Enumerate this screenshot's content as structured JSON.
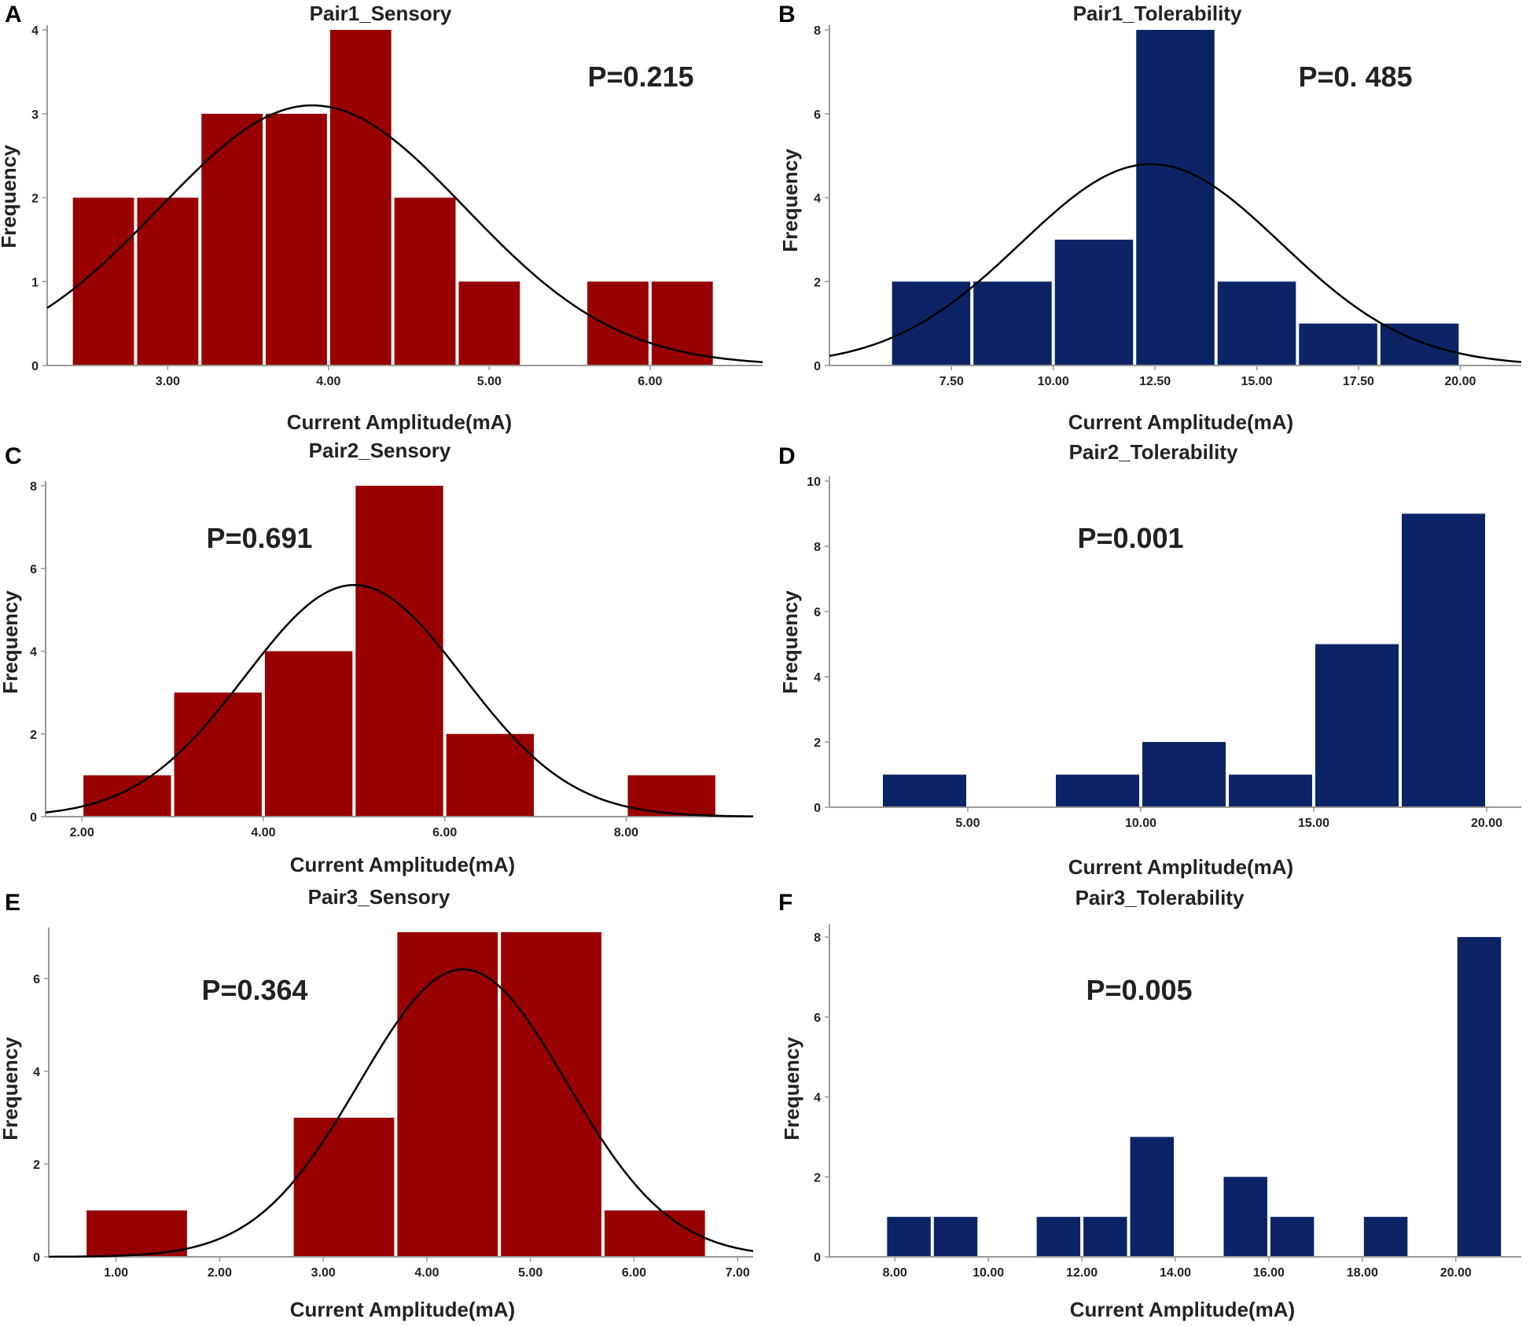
{
  "figure": {
    "panels": [
      {
        "letter": "A"
      },
      {
        "letter": "B"
      },
      {
        "letter": "C"
      },
      {
        "letter": "D"
      },
      {
        "letter": "E"
      },
      {
        "letter": "F"
      }
    ]
  },
  "colors": {
    "sensory": "#990000",
    "tolerability": "#0c2466",
    "curve": "#000000",
    "axis": "#999999"
  },
  "chart_data": [
    {
      "panel": "A",
      "type": "bar",
      "title": "Pair1_Sensory",
      "annotation": "P=0.215",
      "xlabel": "Current  Amplitude(mA)",
      "ylabel": "Frequency",
      "xlim": [
        2.25,
        6.7
      ],
      "ylim": [
        0,
        4
      ],
      "xticks": [
        3,
        4,
        5,
        6
      ],
      "xtick_labels": [
        "3.00",
        "4.00",
        "5.00",
        "6.00"
      ],
      "yticks": [
        0,
        1,
        2,
        3,
        4
      ],
      "ytick_labels": [
        "0",
        "1",
        "2",
        "3",
        "4"
      ],
      "bins": [
        [
          2.4,
          2.8
        ],
        [
          2.8,
          3.2
        ],
        [
          3.2,
          3.6
        ],
        [
          3.6,
          4.0
        ],
        [
          4.0,
          4.4
        ],
        [
          4.4,
          4.8
        ],
        [
          4.8,
          5.2
        ],
        [
          5.6,
          6.0
        ],
        [
          6.0,
          6.4
        ]
      ],
      "values": [
        2,
        2,
        3,
        3,
        4,
        2,
        1,
        1,
        1
      ],
      "normal_curve": {
        "mean": 3.9,
        "sd": 0.95,
        "peak": 3.1
      },
      "color": "sensory"
    },
    {
      "panel": "B",
      "type": "bar",
      "title": "Pair1_Tolerability",
      "annotation": "P=0. 485",
      "xlabel": "Current  Amplitude(mA)",
      "ylabel": "Frequency",
      "xlim": [
        4.5,
        21.5
      ],
      "ylim": [
        0,
        8
      ],
      "xticks": [
        7.5,
        10,
        12.5,
        15,
        17.5,
        20
      ],
      "xtick_labels": [
        "7.50",
        "10.00",
        "12.50",
        "15.00",
        "17.50",
        "20.00"
      ],
      "yticks": [
        0,
        2,
        4,
        6,
        8
      ],
      "ytick_labels": [
        "0",
        "2",
        "4",
        "6",
        "8"
      ],
      "bins": [
        [
          6,
          8
        ],
        [
          8,
          10
        ],
        [
          10,
          12
        ],
        [
          12,
          14
        ],
        [
          14,
          16
        ],
        [
          16,
          18
        ],
        [
          18,
          20
        ]
      ],
      "values": [
        2,
        2,
        3,
        8,
        2,
        1,
        1
      ],
      "normal_curve": {
        "mean": 12.4,
        "sd": 3.2,
        "peak": 4.8
      },
      "color": "tolerability"
    },
    {
      "panel": "C",
      "type": "bar",
      "title": "Pair2_Sensory",
      "annotation": "P=0.691",
      "xlabel": "Current  Amplitude(mA)",
      "ylabel": "Frequency",
      "xlim": [
        1.6,
        9.4
      ],
      "ylim": [
        0,
        8
      ],
      "xticks": [
        2,
        4,
        6,
        8
      ],
      "xtick_labels": [
        "2.00",
        "4.00",
        "6.00",
        "8.00"
      ],
      "yticks": [
        0,
        2,
        4,
        6,
        8
      ],
      "ytick_labels": [
        "0",
        "2",
        "4",
        "6",
        "8"
      ],
      "bins": [
        [
          2,
          3
        ],
        [
          3,
          4
        ],
        [
          4,
          5
        ],
        [
          5,
          6
        ],
        [
          6,
          7
        ],
        [
          8,
          9
        ]
      ],
      "values": [
        1,
        3,
        4,
        8,
        2,
        1
      ],
      "normal_curve": {
        "mean": 5.0,
        "sd": 1.2,
        "peak": 5.6
      },
      "color": "sensory"
    },
    {
      "panel": "D",
      "type": "bar",
      "title": "Pair2_Tolerability",
      "annotation": "P=0.001",
      "xlabel": "Current  Amplitude(mA)",
      "ylabel": "Frequency",
      "xlim": [
        1,
        21
      ],
      "ylim": [
        0,
        10
      ],
      "xticks": [
        5,
        10,
        15,
        20
      ],
      "xtick_labels": [
        "5.00",
        "10.00",
        "15.00",
        "20.00"
      ],
      "yticks": [
        0,
        2,
        4,
        6,
        8,
        10
      ],
      "ytick_labels": [
        "0",
        "2",
        "4",
        "6",
        "8",
        "10"
      ],
      "bins": [
        [
          2.5,
          5
        ],
        [
          7.5,
          10
        ],
        [
          10,
          12.5
        ],
        [
          12.5,
          15
        ],
        [
          15,
          17.5
        ],
        [
          17.5,
          20
        ]
      ],
      "values": [
        1,
        1,
        2,
        1,
        5,
        9
      ],
      "normal_curve": null,
      "color": "tolerability"
    },
    {
      "panel": "E",
      "type": "bar",
      "title": "Pair3_Sensory",
      "annotation": "P=0.364",
      "xlabel": "Current  Amplitude(mA)",
      "ylabel": "Frequency",
      "xlim": [
        0.35,
        7.15
      ],
      "ylim": [
        0,
        7
      ],
      "xticks": [
        1,
        2,
        3,
        4,
        5,
        6,
        7
      ],
      "xtick_labels": [
        "1.00",
        "2.00",
        "3.00",
        "4.00",
        "5.00",
        "6.00",
        "7.00"
      ],
      "yticks": [
        0,
        2,
        4,
        6
      ],
      "ytick_labels": [
        "0",
        "2",
        "4",
        "6"
      ],
      "bins": [
        [
          0.7,
          1.7
        ],
        [
          2.7,
          3.7
        ],
        [
          3.7,
          4.7
        ],
        [
          4.7,
          5.7
        ],
        [
          5.7,
          6.7
        ]
      ],
      "values": [
        1,
        3,
        7,
        7,
        1
      ],
      "normal_curve": {
        "mean": 4.35,
        "sd": 1.0,
        "peak": 6.2
      },
      "color": "sensory"
    },
    {
      "panel": "F",
      "type": "bar",
      "title": "Pair3_Tolerability",
      "annotation": "P=0.005",
      "xlabel": "Current  Amplitude(mA)",
      "ylabel": "Frequency",
      "xlim": [
        6.6,
        21.4
      ],
      "ylim": [
        0,
        8.2
      ],
      "xticks": [
        8,
        10,
        12,
        14,
        16,
        18,
        20
      ],
      "xtick_labels": [
        "8.00",
        "10.00",
        "12.00",
        "14.00",
        "16.00",
        "18.00",
        "20.00"
      ],
      "yticks": [
        0,
        2,
        4,
        6,
        8
      ],
      "ytick_labels": [
        "0",
        "2",
        "4",
        "6",
        "8"
      ],
      "bins": [
        [
          7.8,
          8.8
        ],
        [
          8.8,
          9.8
        ],
        [
          11.0,
          12.0
        ],
        [
          12.0,
          13.0
        ],
        [
          13.0,
          14.0
        ],
        [
          15.0,
          16.0
        ],
        [
          16.0,
          17.0
        ],
        [
          18.0,
          19.0
        ],
        [
          20.0,
          21.0
        ]
      ],
      "values": [
        1,
        1,
        1,
        1,
        3,
        2,
        1,
        1,
        8
      ],
      "normal_curve": null,
      "color": "tolerability"
    }
  ]
}
